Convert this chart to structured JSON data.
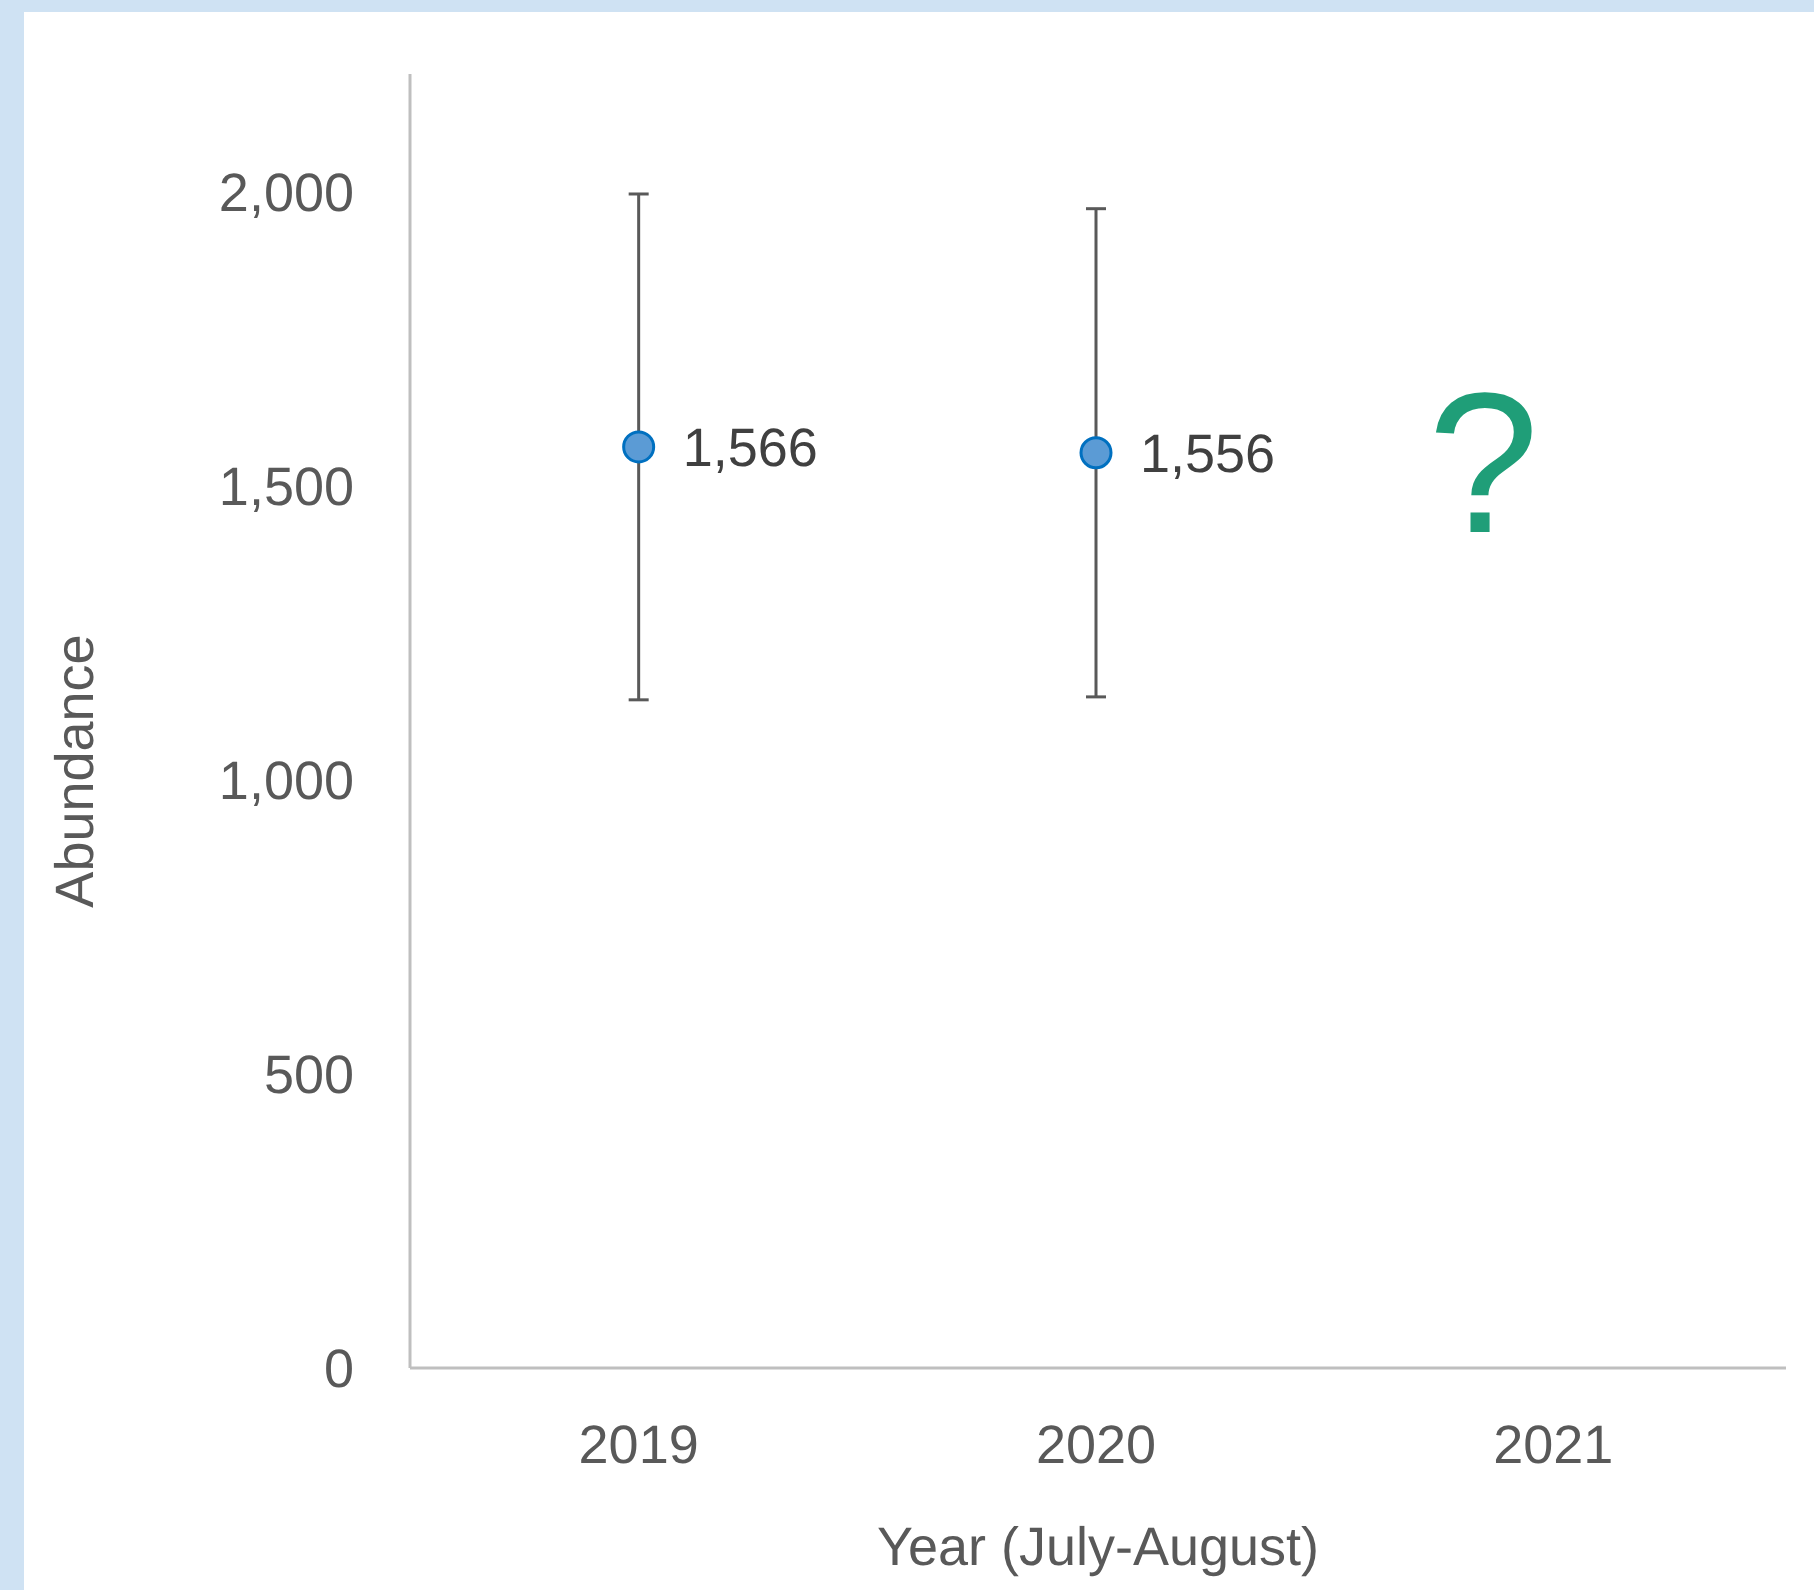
{
  "chart_data": {
    "type": "scatter",
    "xlabel": "Year (July-August)",
    "ylabel": "Abundance",
    "categories": [
      "2019",
      "2020",
      "2021"
    ],
    "values": [
      1566,
      1556,
      null
    ],
    "errors": [
      430,
      415,
      null
    ],
    "color": "#5b9bd5",
    "value_labels": [
      "1,566",
      "1,556",
      null
    ],
    "marker": "circle",
    "ylim": [
      0,
      2200
    ],
    "yticks": [
      0,
      {
        "value": 500,
        "label": "500"
      },
      {
        "value": 1000,
        "label": "1,000"
      },
      {
        "value": 1500,
        "label": "1,500"
      },
      {
        "value": 2000,
        "label": "2,000"
      }
    ],
    "grid": false,
    "annotations": [
      "?"
    ]
  }
}
